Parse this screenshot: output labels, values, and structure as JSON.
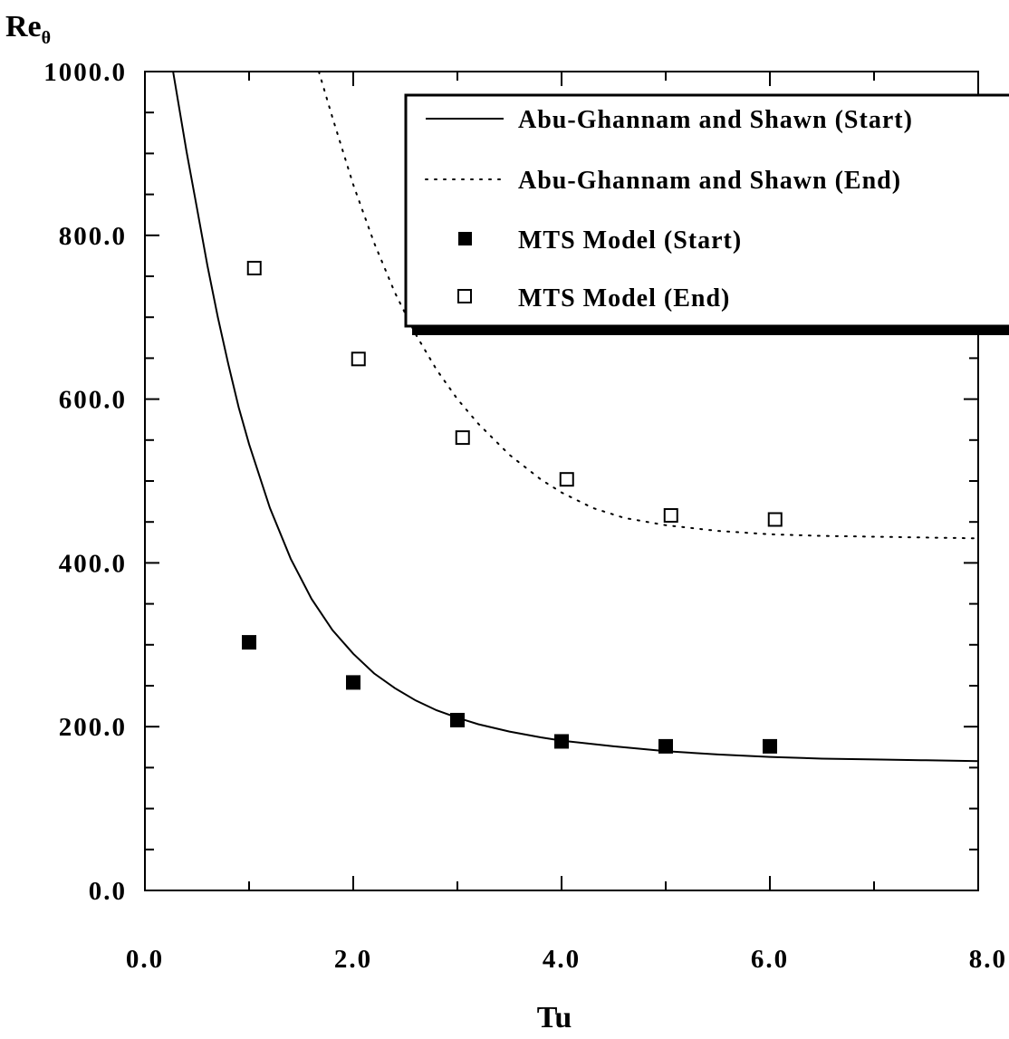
{
  "chart_data": {
    "type": "scatter",
    "xlabel": "Tu",
    "ylabel": "Re",
    "ylabel_sub": "θ",
    "xlim": [
      0,
      8
    ],
    "ylim": [
      0,
      1000
    ],
    "x_ticks": [
      0,
      2,
      4,
      6,
      8
    ],
    "x_tick_labels": [
      "0.0",
      "2.0",
      "4.0",
      "6.0",
      "8.0"
    ],
    "y_ticks": [
      0,
      200,
      400,
      600,
      800,
      1000
    ],
    "y_tick_labels": [
      "0.0",
      "200.0",
      "400.0",
      "600.0",
      "800.0",
      "1000.0"
    ],
    "x_minor_step": 1,
    "y_minor_step": 50,
    "grid": false,
    "legend_position": "top-right",
    "series": [
      {
        "name": "Abu-Ghannam and Shawn (Start)",
        "style": "solid-line",
        "x": [
          0.27,
          0.4,
          0.5,
          0.6,
          0.7,
          0.8,
          0.9,
          1.0,
          1.2,
          1.4,
          1.6,
          1.8,
          2.0,
          2.2,
          2.4,
          2.6,
          2.8,
          3.0,
          3.2,
          3.5,
          3.8,
          4.0,
          4.5,
          5.0,
          5.5,
          6.0,
          6.5,
          7.0,
          7.5,
          8.0
        ],
        "y": [
          1000,
          902,
          833,
          763,
          700,
          643,
          590,
          545,
          467,
          405,
          356,
          318,
          289,
          265,
          247,
          232,
          220,
          211,
          203,
          194,
          187,
          183,
          176,
          170,
          166,
          163,
          161,
          160,
          159,
          158
        ]
      },
      {
        "name": "Abu-Ghannam and Shawn (End)",
        "style": "dotted-line",
        "x": [
          1.67,
          1.8,
          2.0,
          2.2,
          2.4,
          2.6,
          2.8,
          3.0,
          3.2,
          3.5,
          3.8,
          4.0,
          4.3,
          4.6,
          5.0,
          5.5,
          6.0,
          6.5,
          7.0,
          7.5,
          8.0
        ],
        "y": [
          1000,
          944,
          862,
          791,
          730,
          679,
          636,
          600,
          570,
          532,
          502,
          486,
          467,
          455,
          446,
          439,
          435,
          433,
          432,
          431,
          430
        ]
      },
      {
        "name": "MTS Model (Start)",
        "style": "filled-square",
        "x": [
          1.0,
          2.0,
          3.0,
          4.0,
          5.0,
          6.0
        ],
        "y": [
          303,
          254,
          208,
          182,
          176,
          176
        ]
      },
      {
        "name": "MTS Model (End)",
        "style": "open-square",
        "x": [
          1.05,
          2.05,
          3.05,
          4.05,
          5.05,
          6.05
        ],
        "y": [
          760,
          649,
          553,
          502,
          458,
          453
        ]
      }
    ]
  }
}
